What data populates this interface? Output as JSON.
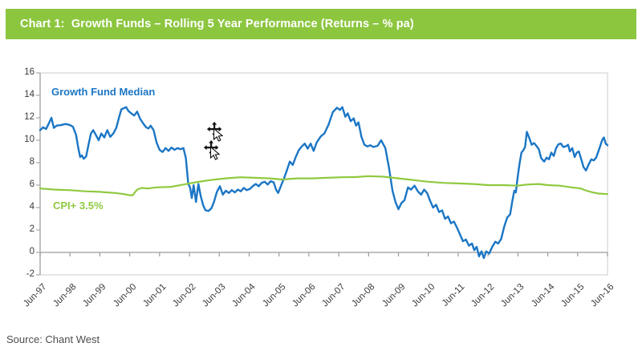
{
  "header": {
    "title": "Chart 1:  Growth Funds – Rolling 5 Year Performance (Returns – % pa)",
    "bg_color": "#8CC63F",
    "text_color": "#FFFFFF"
  },
  "source_note": "Source: Chant West",
  "cursor_artifact": {
    "description": "stray overlapping cursors on plot",
    "icons": [
      "move-cursor",
      "pointer-cursor",
      "move-cursor",
      "pointer-cursor"
    ]
  },
  "chart_data": {
    "type": "line",
    "title": "Growth Funds – Rolling 5 Year Performance (Returns – % pa)",
    "xlabel": "",
    "ylabel": "",
    "grid": false,
    "x_range": [
      0,
      19
    ],
    "x_axis": {
      "labels": [
        "Jun-97",
        "Jun-98",
        "Jun-99",
        "Jun-00",
        "Jun-01",
        "Jun-02",
        "Jun-03",
        "Jun-04",
        "Jun-05",
        "Jun-06",
        "Jun-07",
        "Jun-08",
        "Jun-09",
        "Jun-10",
        "Jun-11",
        "Jun-12",
        "Jun-13",
        "Jun-14",
        "Jun-15",
        "Jun-16"
      ],
      "label_rotation_deg": 45
    },
    "y_axis": {
      "min": -2,
      "max": 16,
      "tick_step": 2,
      "ticks": [
        16,
        14,
        12,
        10,
        8,
        6,
        4,
        2,
        0,
        -2
      ]
    },
    "axis_colors": {
      "plot_border": "#D9D9D9",
      "axis_line": "#A6A6A6",
      "zero_line": "#9B9B9B"
    },
    "series": [
      {
        "name": "Growth Fund Median",
        "color": "#1B76C5",
        "points": [
          [
            0,
            10.9
          ],
          [
            0.1,
            11.15
          ],
          [
            0.2,
            11.0
          ],
          [
            0.3,
            11.55
          ],
          [
            0.38,
            12.0
          ],
          [
            0.46,
            11.1
          ],
          [
            0.55,
            11.3
          ],
          [
            0.7,
            11.35
          ],
          [
            0.85,
            11.45
          ],
          [
            1.0,
            11.35
          ],
          [
            1.1,
            11.2
          ],
          [
            1.2,
            10.5
          ],
          [
            1.28,
            9.3
          ],
          [
            1.34,
            8.5
          ],
          [
            1.4,
            8.65
          ],
          [
            1.46,
            8.35
          ],
          [
            1.54,
            8.55
          ],
          [
            1.62,
            9.6
          ],
          [
            1.7,
            10.6
          ],
          [
            1.78,
            10.9
          ],
          [
            1.88,
            10.4
          ],
          [
            1.96,
            10.0
          ],
          [
            2.05,
            10.6
          ],
          [
            2.15,
            10.25
          ],
          [
            2.25,
            10.9
          ],
          [
            2.35,
            10.3
          ],
          [
            2.45,
            10.6
          ],
          [
            2.55,
            11.1
          ],
          [
            2.65,
            12.1
          ],
          [
            2.72,
            12.75
          ],
          [
            2.8,
            12.85
          ],
          [
            2.88,
            12.95
          ],
          [
            2.96,
            12.6
          ],
          [
            3.05,
            12.4
          ],
          [
            3.15,
            12.2
          ],
          [
            3.25,
            12.55
          ],
          [
            3.35,
            11.9
          ],
          [
            3.45,
            11.5
          ],
          [
            3.55,
            11.15
          ],
          [
            3.63,
            11.05
          ],
          [
            3.7,
            11.3
          ],
          [
            3.8,
            10.9
          ],
          [
            3.9,
            9.8
          ],
          [
            4.0,
            9.15
          ],
          [
            4.1,
            8.95
          ],
          [
            4.2,
            9.3
          ],
          [
            4.3,
            9.05
          ],
          [
            4.4,
            9.35
          ],
          [
            4.5,
            9.15
          ],
          [
            4.6,
            9.3
          ],
          [
            4.7,
            9.2
          ],
          [
            4.8,
            9.3
          ],
          [
            4.88,
            8.4
          ],
          [
            4.96,
            6.1
          ],
          [
            5.02,
            5.8
          ],
          [
            5.08,
            4.85
          ],
          [
            5.14,
            6.0
          ],
          [
            5.22,
            4.5
          ],
          [
            5.3,
            6.1
          ],
          [
            5.38,
            5.0
          ],
          [
            5.46,
            4.2
          ],
          [
            5.54,
            3.75
          ],
          [
            5.64,
            3.7
          ],
          [
            5.74,
            3.95
          ],
          [
            5.82,
            4.5
          ],
          [
            5.92,
            5.4
          ],
          [
            6.02,
            5.9
          ],
          [
            6.12,
            5.15
          ],
          [
            6.22,
            5.5
          ],
          [
            6.32,
            5.3
          ],
          [
            6.42,
            5.55
          ],
          [
            6.52,
            5.35
          ],
          [
            6.62,
            5.6
          ],
          [
            6.72,
            5.45
          ],
          [
            6.82,
            5.75
          ],
          [
            6.92,
            5.55
          ],
          [
            7.02,
            5.65
          ],
          [
            7.12,
            5.9
          ],
          [
            7.22,
            6.1
          ],
          [
            7.32,
            5.9
          ],
          [
            7.42,
            6.2
          ],
          [
            7.52,
            6.3
          ],
          [
            7.62,
            6.05
          ],
          [
            7.72,
            6.35
          ],
          [
            7.82,
            6.25
          ],
          [
            7.9,
            5.6
          ],
          [
            7.97,
            5.3
          ],
          [
            8.06,
            5.9
          ],
          [
            8.16,
            6.55
          ],
          [
            8.26,
            7.3
          ],
          [
            8.36,
            8.1
          ],
          [
            8.46,
            7.8
          ],
          [
            8.56,
            8.5
          ],
          [
            8.66,
            9.1
          ],
          [
            8.76,
            9.45
          ],
          [
            8.86,
            9.7
          ],
          [
            8.96,
            9.25
          ],
          [
            9.06,
            9.7
          ],
          [
            9.16,
            9.05
          ],
          [
            9.26,
            9.8
          ],
          [
            9.4,
            10.35
          ],
          [
            9.52,
            10.6
          ],
          [
            9.66,
            11.4
          ],
          [
            9.8,
            12.5
          ],
          [
            9.94,
            12.9
          ],
          [
            10.04,
            12.7
          ],
          [
            10.12,
            12.95
          ],
          [
            10.22,
            12.1
          ],
          [
            10.3,
            12.4
          ],
          [
            10.4,
            11.7
          ],
          [
            10.5,
            11.95
          ],
          [
            10.58,
            11.3
          ],
          [
            10.66,
            11.6
          ],
          [
            10.76,
            10.3
          ],
          [
            10.86,
            9.6
          ],
          [
            10.96,
            9.45
          ],
          [
            11.06,
            9.55
          ],
          [
            11.16,
            9.4
          ],
          [
            11.3,
            9.5
          ],
          [
            11.42,
            10.0
          ],
          [
            11.56,
            9.3
          ],
          [
            11.68,
            7.6
          ],
          [
            11.8,
            5.5
          ],
          [
            11.9,
            4.5
          ],
          [
            12.0,
            3.85
          ],
          [
            12.1,
            4.4
          ],
          [
            12.2,
            4.65
          ],
          [
            12.32,
            5.8
          ],
          [
            12.42,
            5.6
          ],
          [
            12.54,
            5.95
          ],
          [
            12.66,
            5.4
          ],
          [
            12.76,
            5.15
          ],
          [
            12.86,
            5.6
          ],
          [
            12.96,
            5.3
          ],
          [
            13.06,
            4.6
          ],
          [
            13.16,
            4.0
          ],
          [
            13.26,
            4.25
          ],
          [
            13.36,
            3.6
          ],
          [
            13.46,
            3.75
          ],
          [
            13.56,
            3.0
          ],
          [
            13.66,
            3.2
          ],
          [
            13.76,
            2.6
          ],
          [
            13.86,
            2.75
          ],
          [
            13.96,
            2.2
          ],
          [
            14.06,
            1.6
          ],
          [
            14.16,
            1.0
          ],
          [
            14.26,
            1.15
          ],
          [
            14.36,
            0.6
          ],
          [
            14.46,
            0.8
          ],
          [
            14.54,
            0.2
          ],
          [
            14.62,
            0.5
          ],
          [
            14.7,
            -0.35
          ],
          [
            14.78,
            0.1
          ],
          [
            14.86,
            -0.5
          ],
          [
            14.94,
            0.1
          ],
          [
            15.04,
            -0.1
          ],
          [
            15.14,
            0.5
          ],
          [
            15.24,
            0.95
          ],
          [
            15.34,
            0.8
          ],
          [
            15.44,
            1.2
          ],
          [
            15.54,
            2.3
          ],
          [
            15.64,
            3.1
          ],
          [
            15.74,
            3.4
          ],
          [
            15.82,
            4.7
          ],
          [
            15.88,
            5.5
          ],
          [
            15.93,
            5.35
          ],
          [
            16.0,
            6.9
          ],
          [
            16.06,
            8.0
          ],
          [
            16.12,
            8.9
          ],
          [
            16.18,
            9.1
          ],
          [
            16.24,
            9.4
          ],
          [
            16.3,
            10.75
          ],
          [
            16.38,
            10.2
          ],
          [
            16.46,
            9.6
          ],
          [
            16.54,
            9.75
          ],
          [
            16.62,
            9.5
          ],
          [
            16.7,
            9.2
          ],
          [
            16.78,
            8.4
          ],
          [
            16.88,
            8.1
          ],
          [
            16.96,
            8.45
          ],
          [
            17.04,
            8.3
          ],
          [
            17.12,
            8.9
          ],
          [
            17.2,
            8.6
          ],
          [
            17.28,
            9.3
          ],
          [
            17.36,
            9.65
          ],
          [
            17.44,
            9.7
          ],
          [
            17.52,
            9.4
          ],
          [
            17.6,
            9.45
          ],
          [
            17.68,
            9.6
          ],
          [
            17.74,
            9.0
          ],
          [
            17.82,
            9.3
          ],
          [
            17.9,
            8.5
          ],
          [
            17.97,
            8.9
          ],
          [
            18.04,
            9.0
          ],
          [
            18.12,
            8.3
          ],
          [
            18.2,
            7.6
          ],
          [
            18.28,
            7.3
          ],
          [
            18.38,
            7.9
          ],
          [
            18.46,
            8.3
          ],
          [
            18.54,
            8.2
          ],
          [
            18.62,
            8.45
          ],
          [
            18.72,
            9.2
          ],
          [
            18.82,
            10.0
          ],
          [
            18.88,
            10.25
          ],
          [
            18.94,
            9.7
          ],
          [
            19.0,
            9.55
          ]
        ]
      },
      {
        "name": "CPI+ 3.5%",
        "color": "#8FC93F",
        "points": [
          [
            0,
            5.7
          ],
          [
            0.5,
            5.6
          ],
          [
            1.0,
            5.55
          ],
          [
            1.5,
            5.45
          ],
          [
            2.0,
            5.4
          ],
          [
            2.5,
            5.3
          ],
          [
            2.8,
            5.2
          ],
          [
            3.0,
            5.1
          ],
          [
            3.1,
            5.1
          ],
          [
            3.25,
            5.6
          ],
          [
            3.4,
            5.75
          ],
          [
            3.6,
            5.7
          ],
          [
            3.9,
            5.8
          ],
          [
            4.4,
            5.85
          ],
          [
            4.8,
            6.05
          ],
          [
            5.2,
            6.25
          ],
          [
            5.7,
            6.45
          ],
          [
            6.2,
            6.6
          ],
          [
            6.7,
            6.7
          ],
          [
            7.2,
            6.65
          ],
          [
            7.7,
            6.6
          ],
          [
            8.1,
            6.5
          ],
          [
            8.6,
            6.6
          ],
          [
            9.1,
            6.6
          ],
          [
            9.6,
            6.65
          ],
          [
            10.1,
            6.7
          ],
          [
            10.6,
            6.72
          ],
          [
            11.0,
            6.8
          ],
          [
            11.5,
            6.75
          ],
          [
            12.0,
            6.6
          ],
          [
            12.5,
            6.45
          ],
          [
            13.0,
            6.3
          ],
          [
            13.5,
            6.2
          ],
          [
            14.0,
            6.15
          ],
          [
            14.5,
            6.1
          ],
          [
            15.0,
            6.0
          ],
          [
            15.5,
            6.0
          ],
          [
            16.0,
            5.95
          ],
          [
            16.3,
            6.05
          ],
          [
            16.7,
            6.1
          ],
          [
            17.0,
            6.0
          ],
          [
            17.4,
            5.95
          ],
          [
            17.8,
            5.8
          ],
          [
            18.1,
            5.7
          ],
          [
            18.3,
            5.5
          ],
          [
            18.5,
            5.35
          ],
          [
            18.7,
            5.25
          ],
          [
            19.0,
            5.2
          ]
        ]
      }
    ],
    "legend_position": "in-plot-labels"
  }
}
